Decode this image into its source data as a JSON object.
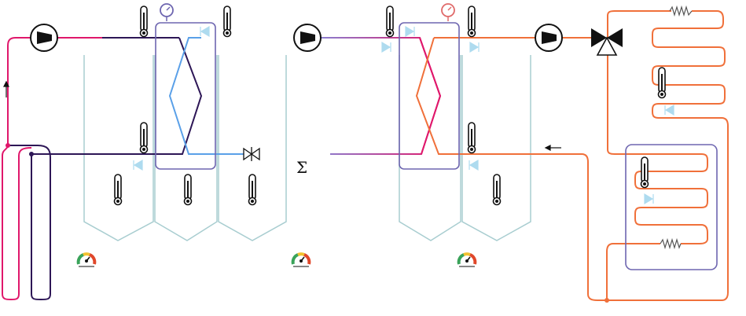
{
  "diagram": {
    "sum_symbol": "Σ",
    "colors": {
      "red": "#e0176b",
      "dark": "#2d1656",
      "blue": "#5aa0e8",
      "purple": "#8a7fd0",
      "orange": "#f0703a",
      "tank": "#a8cdd0",
      "hx_frame": "#6e66b0",
      "pump": "#111111",
      "check_valve": "#aedbef"
    },
    "icons": {
      "pump": "pump-icon",
      "thermometer": "thermometer-icon",
      "manometer": "pressure-gauge-icon",
      "meter": "flow-meter-icon",
      "valve": "valve-icon",
      "three_way_valve": "three-way-valve-icon",
      "check_valve": "check-valve-icon",
      "heater": "heating-element-icon"
    }
  }
}
